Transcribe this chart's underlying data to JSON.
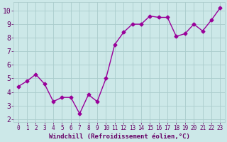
{
  "x": [
    0,
    1,
    2,
    3,
    4,
    5,
    6,
    7,
    8,
    9,
    10,
    11,
    12,
    13,
    14,
    15,
    16,
    17,
    18,
    19,
    20,
    21,
    22,
    23
  ],
  "y": [
    4.4,
    4.8,
    5.3,
    4.6,
    3.3,
    3.6,
    3.6,
    2.4,
    3.8,
    3.3,
    5.0,
    7.5,
    8.4,
    9.0,
    9.0,
    9.6,
    9.5,
    9.5,
    8.1,
    8.3,
    9.0,
    8.5,
    9.3,
    10.2
  ],
  "line_color": "#990099",
  "marker": "D",
  "markersize": 2.5,
  "linewidth": 1.0,
  "bg_color": "#cce8e8",
  "grid_color": "#aacccc",
  "xlabel": "Windchill (Refroidissement éolien,°C)",
  "xlim": [
    -0.5,
    23.5
  ],
  "ylim": [
    1.8,
    10.6
  ],
  "yticks": [
    2,
    3,
    4,
    5,
    6,
    7,
    8,
    9,
    10
  ],
  "xticks": [
    0,
    1,
    2,
    3,
    4,
    5,
    6,
    7,
    8,
    9,
    10,
    11,
    12,
    13,
    14,
    15,
    16,
    17,
    18,
    19,
    20,
    21,
    22,
    23
  ],
  "tick_color": "#660066",
  "label_color": "#660066",
  "xlabel_fontsize": 6.5,
  "ytick_fontsize": 7,
  "xtick_fontsize": 5.5
}
